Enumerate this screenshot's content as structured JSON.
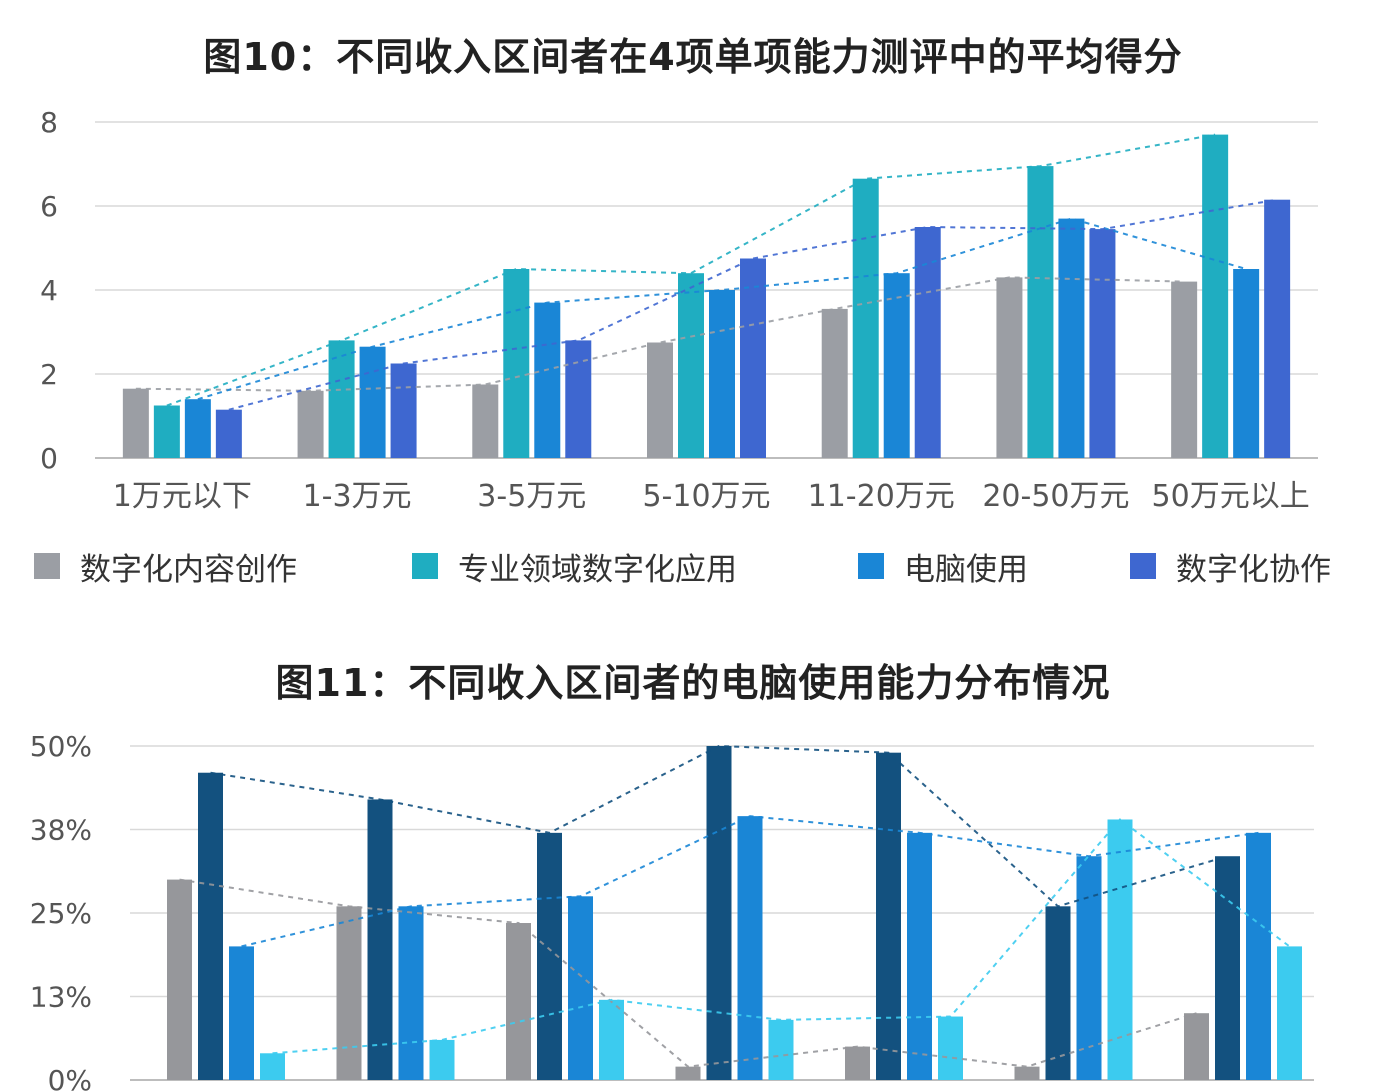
{
  "chart_data": [
    {
      "type": "bar",
      "title": "图10：不同收入区间者在4项单项能力测评中的平均得分",
      "categories": [
        "1万元以下",
        "1-3万元",
        "3-5万元",
        "5-10万元",
        "11-20万元",
        "20-50万元",
        "50万元以上"
      ],
      "ylim": [
        0,
        8
      ],
      "yticks": [
        "0",
        "2",
        "4",
        "6",
        "8"
      ],
      "grid": true,
      "legend_position": "bottom",
      "trendlines": true,
      "series": [
        {
          "name": "数字化内容创作",
          "color": "#9b9ea4",
          "values": [
            1.65,
            1.6,
            1.75,
            2.75,
            3.55,
            4.3,
            4.2
          ]
        },
        {
          "name": "专业领域数字化应用",
          "color": "#1fadc1",
          "values": [
            1.25,
            2.8,
            4.5,
            4.4,
            6.65,
            6.95,
            7.7
          ]
        },
        {
          "name": "电脑使用",
          "color": "#1a86d6",
          "values": [
            1.4,
            2.65,
            3.7,
            4.0,
            4.4,
            5.7,
            4.5
          ]
        },
        {
          "name": "数字化协作",
          "color": "#3e67d0",
          "values": [
            1.15,
            2.25,
            2.8,
            4.75,
            5.5,
            5.45,
            6.15
          ]
        }
      ]
    },
    {
      "type": "bar",
      "title": "图11：不同收入区间者的电脑使用能力分布情况",
      "ylim": [
        0,
        50
      ],
      "yticks": [
        "0%",
        "13%",
        "25%",
        "38%",
        "50%"
      ],
      "grid": true,
      "trendlines": true,
      "groups": 7,
      "series": [
        {
          "color": "#96979b",
          "values": [
            30,
            26,
            23.5,
            2,
            5,
            2,
            10
          ]
        },
        {
          "color": "#13517f",
          "values": [
            46,
            42,
            37,
            50,
            49,
            26,
            33.5
          ]
        },
        {
          "color": "#1a86d6",
          "values": [
            20,
            26,
            27.5,
            39.5,
            37,
            33.5,
            37
          ]
        },
        {
          "color": "#3ccbef",
          "values": [
            4,
            6,
            12,
            9,
            9.5,
            39,
            20
          ]
        }
      ]
    }
  ]
}
